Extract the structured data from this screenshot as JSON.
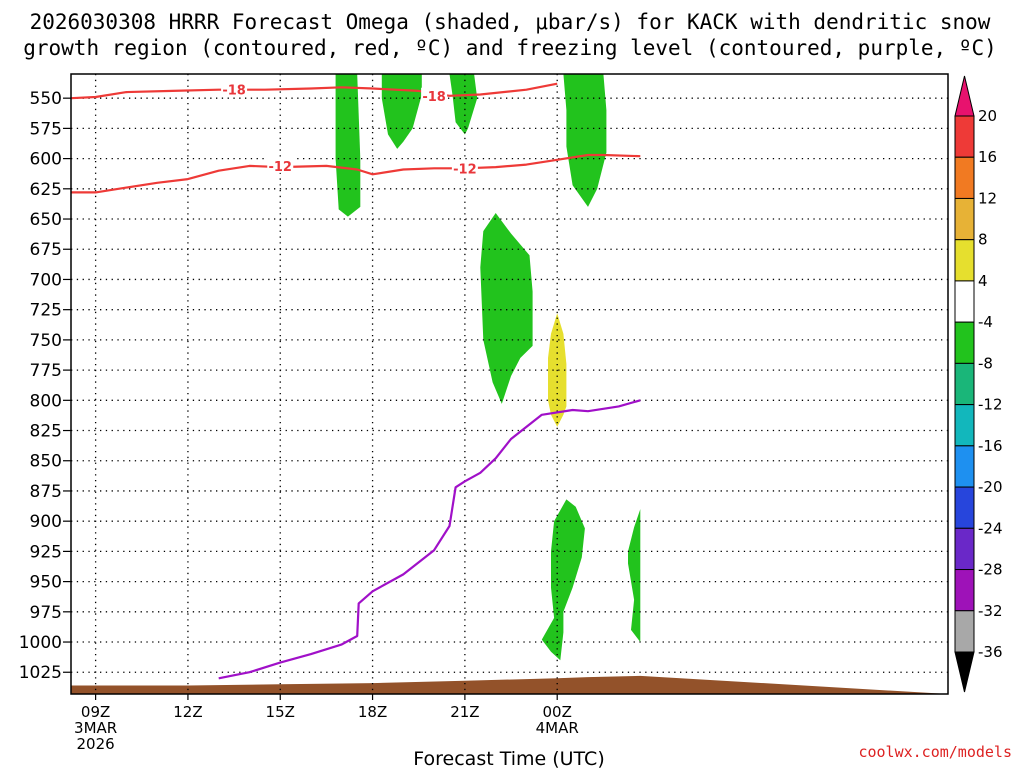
{
  "chart_data": {
    "type": "heatmap",
    "title_line1": "2026030308 HRRR Forecast Omega (shaded, μbar/s) for KACK with dendritic snow",
    "title_line2": "growth region (contoured, red, ºC) and freezing level (contoured, purple, ºC)",
    "xlabel": "Forecast Time (UTC)",
    "credit": "coolwx.com/models",
    "x_range_hours": [
      -0.8,
      27.7
    ],
    "y_range_hpa": [
      530,
      1043
    ],
    "y_ticks": [
      550,
      575,
      600,
      625,
      650,
      675,
      700,
      725,
      750,
      775,
      800,
      825,
      850,
      875,
      900,
      925,
      950,
      975,
      1000,
      1025
    ],
    "x_ticks": [
      {
        "hour": 0,
        "lines": [
          "09Z",
          "3MAR",
          "2026"
        ]
      },
      {
        "hour": 3,
        "lines": [
          "12Z"
        ]
      },
      {
        "hour": 6,
        "lines": [
          "15Z"
        ]
      },
      {
        "hour": 9,
        "lines": [
          "18Z"
        ]
      },
      {
        "hour": 12,
        "lines": [
          "21Z"
        ]
      },
      {
        "hour": 15,
        "lines": [
          "00Z",
          "4MAR"
        ]
      }
    ],
    "colorbar": {
      "labels": [
        "20",
        "16",
        "12",
        "8",
        "4",
        "-4",
        "-8",
        "-12",
        "-16",
        "-20",
        "-24",
        "-28",
        "-32",
        "-36"
      ],
      "colors": [
        "#e8126e",
        "#ee3a37",
        "#f17a22",
        "#e7b236",
        "#e6df2e",
        "#ffffff",
        "#22c31d",
        "#1ab679",
        "#12b7bc",
        "#1e90f0",
        "#2745dc",
        "#6a28c8",
        "#9e12b8",
        "#a8a8a8",
        "#000000"
      ]
    },
    "series": [
      {
        "name": "-18 ºC isotherm",
        "color": "#ee3a37",
        "label": "-18",
        "points": [
          [
            -0.8,
            550
          ],
          [
            0,
            549
          ],
          [
            1,
            545
          ],
          [
            2.5,
            544
          ],
          [
            4,
            543
          ],
          [
            5.5,
            543
          ],
          [
            7,
            542
          ],
          [
            8,
            541
          ],
          [
            9,
            542
          ],
          [
            10.5,
            544
          ],
          [
            11.5,
            548
          ],
          [
            12.5,
            547
          ],
          [
            14,
            543
          ],
          [
            15,
            538
          ]
        ],
        "label_positions": [
          [
            4.5,
            543
          ],
          [
            11,
            548
          ]
        ]
      },
      {
        "name": "-12 ºC isotherm",
        "color": "#ee3a37",
        "label": "-12",
        "points": [
          [
            -0.8,
            628
          ],
          [
            0,
            628
          ],
          [
            1,
            624
          ],
          [
            2,
            620
          ],
          [
            3,
            617
          ],
          [
            4,
            610
          ],
          [
            5,
            606
          ],
          [
            6,
            607
          ],
          [
            7.5,
            606
          ],
          [
            8.5,
            609
          ],
          [
            9,
            613
          ],
          [
            10,
            609
          ],
          [
            11,
            608
          ],
          [
            12,
            608
          ],
          [
            13,
            607
          ],
          [
            14,
            605
          ],
          [
            15,
            601
          ],
          [
            16,
            597
          ],
          [
            16.5,
            597
          ],
          [
            17.7,
            598
          ]
        ],
        "label_positions": [
          [
            6,
            606
          ],
          [
            12,
            608
          ]
        ]
      },
      {
        "name": "0 ºC freezing level",
        "color": "#a010c8",
        "label": "",
        "points": [
          [
            4,
            1030
          ],
          [
            5,
            1025
          ],
          [
            6,
            1017
          ],
          [
            7,
            1010
          ],
          [
            8,
            1002
          ],
          [
            8.5,
            995
          ],
          [
            8.55,
            968
          ],
          [
            9,
            958
          ],
          [
            10,
            944
          ],
          [
            11,
            924
          ],
          [
            11.5,
            904
          ],
          [
            11.7,
            872
          ],
          [
            12,
            867
          ],
          [
            12.5,
            860
          ],
          [
            13,
            848
          ],
          [
            13.5,
            832
          ],
          [
            14.5,
            812
          ],
          [
            15.5,
            808
          ],
          [
            16,
            809
          ],
          [
            17,
            805
          ],
          [
            17.7,
            800
          ]
        ],
        "label_positions": []
      }
    ],
    "shaded_regions": [
      {
        "omega": -6,
        "color": "#22c31d",
        "points": [
          [
            7.8,
            530
          ],
          [
            8.5,
            530
          ],
          [
            8.6,
            600
          ],
          [
            8.6,
            640
          ],
          [
            8.2,
            648
          ],
          [
            7.9,
            642
          ],
          [
            7.8,
            600
          ]
        ]
      },
      {
        "omega": -6,
        "color": "#22c31d",
        "points": [
          [
            9.3,
            530
          ],
          [
            10.6,
            530
          ],
          [
            10.6,
            547
          ],
          [
            10.3,
            575
          ],
          [
            10,
            586
          ],
          [
            9.8,
            592
          ],
          [
            9.5,
            580
          ],
          [
            9.3,
            550
          ]
        ]
      },
      {
        "omega": -6,
        "color": "#22c31d",
        "points": [
          [
            11.5,
            530
          ],
          [
            12.3,
            530
          ],
          [
            12.4,
            550
          ],
          [
            12.1,
            575
          ],
          [
            12,
            580
          ],
          [
            11.7,
            570
          ],
          [
            11.6,
            548
          ]
        ]
      },
      {
        "omega": -6,
        "color": "#22c31d",
        "points": [
          [
            15.2,
            530
          ],
          [
            16.5,
            530
          ],
          [
            16.6,
            560
          ],
          [
            16.6,
            595
          ],
          [
            16.3,
            625
          ],
          [
            16,
            640
          ],
          [
            15.5,
            622
          ],
          [
            15.3,
            590
          ],
          [
            15.3,
            560
          ]
        ]
      },
      {
        "omega": -6,
        "color": "#22c31d",
        "points": [
          [
            12.6,
            660
          ],
          [
            13,
            645
          ],
          [
            13.5,
            662
          ],
          [
            14.1,
            680
          ],
          [
            14.2,
            710
          ],
          [
            14.2,
            755
          ],
          [
            13.8,
            765
          ],
          [
            13.5,
            780
          ],
          [
            13.2,
            803
          ],
          [
            12.9,
            785
          ],
          [
            12.6,
            750
          ],
          [
            12.5,
            690
          ]
        ]
      },
      {
        "omega": -6,
        "color": "#22c31d",
        "points": [
          [
            14.9,
            900
          ],
          [
            15.3,
            882
          ],
          [
            15.6,
            888
          ],
          [
            15.9,
            906
          ],
          [
            15.8,
            930
          ],
          [
            15.5,
            955
          ],
          [
            15.2,
            975
          ],
          [
            15.2,
            992
          ],
          [
            15.1,
            1015
          ],
          [
            14.8,
            1008
          ],
          [
            14.5,
            998
          ],
          [
            14.9,
            980
          ],
          [
            14.8,
            955
          ],
          [
            14.8,
            925
          ]
        ]
      },
      {
        "omega": -6,
        "color": "#22c31d",
        "points": [
          [
            17.5,
            905
          ],
          [
            17.7,
            890
          ],
          [
            17.7,
            1000
          ],
          [
            17.4,
            990
          ],
          [
            17.5,
            965
          ],
          [
            17.3,
            935
          ],
          [
            17.3,
            925
          ]
        ]
      },
      {
        "omega": 6,
        "color": "#e6df2e",
        "points": [
          [
            15,
            728
          ],
          [
            15.2,
            745
          ],
          [
            15.3,
            770
          ],
          [
            15.3,
            805
          ],
          [
            15.2,
            812
          ],
          [
            15,
            822
          ],
          [
            14.8,
            812
          ],
          [
            14.7,
            800
          ],
          [
            14.7,
            765
          ],
          [
            14.8,
            745
          ]
        ]
      }
    ],
    "terrain": {
      "color": "#93522a",
      "points": [
        [
          -0.8,
          1036
        ],
        [
          3,
          1036
        ],
        [
          6,
          1035
        ],
        [
          9,
          1034
        ],
        [
          12,
          1032
        ],
        [
          15,
          1030
        ],
        [
          16,
          1029
        ],
        [
          17.7,
          1028
        ]
      ]
    }
  }
}
